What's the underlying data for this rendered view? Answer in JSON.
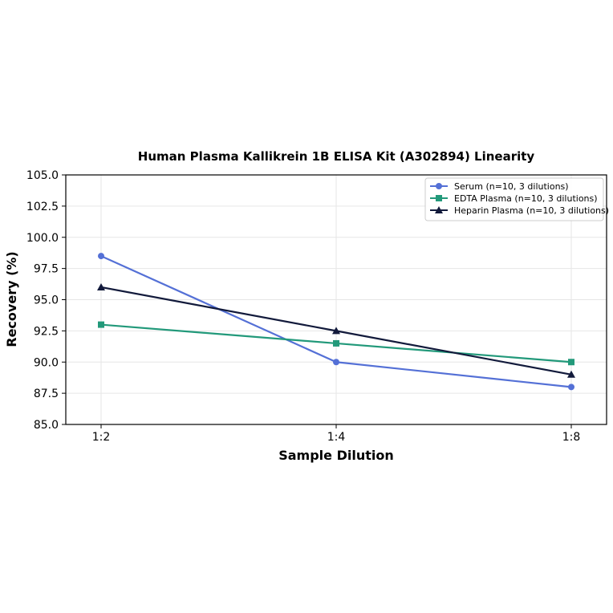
{
  "chart_data": {
    "type": "line",
    "title": "Human Plasma Kallikrein 1B ELISA Kit (A302894) Linearity",
    "xlabel": "Sample Dilution",
    "ylabel": "Recovery (%)",
    "categories": [
      "1:2",
      "1:4",
      "1:8"
    ],
    "ylim": [
      85.0,
      105.0
    ],
    "yticks": [
      "85.0",
      "87.5",
      "90.0",
      "92.5",
      "95.0",
      "97.5",
      "100.0",
      "102.5",
      "105.0"
    ],
    "grid": true,
    "legend_position": "top-right",
    "series": [
      {
        "name": "Serum (n=10, 3 dilutions)",
        "values": [
          98.5,
          90.0,
          88.0
        ],
        "color": "#5470d6",
        "marker": "circle"
      },
      {
        "name": "EDTA Plasma (n=10, 3 dilutions)",
        "values": [
          93.0,
          91.5,
          90.0
        ],
        "color": "#22997a",
        "marker": "square"
      },
      {
        "name": "Heparin Plasma (n=10, 3 dilutions)",
        "values": [
          96.0,
          92.5,
          89.0
        ],
        "color": "#121a3b",
        "marker": "triangle"
      }
    ]
  }
}
